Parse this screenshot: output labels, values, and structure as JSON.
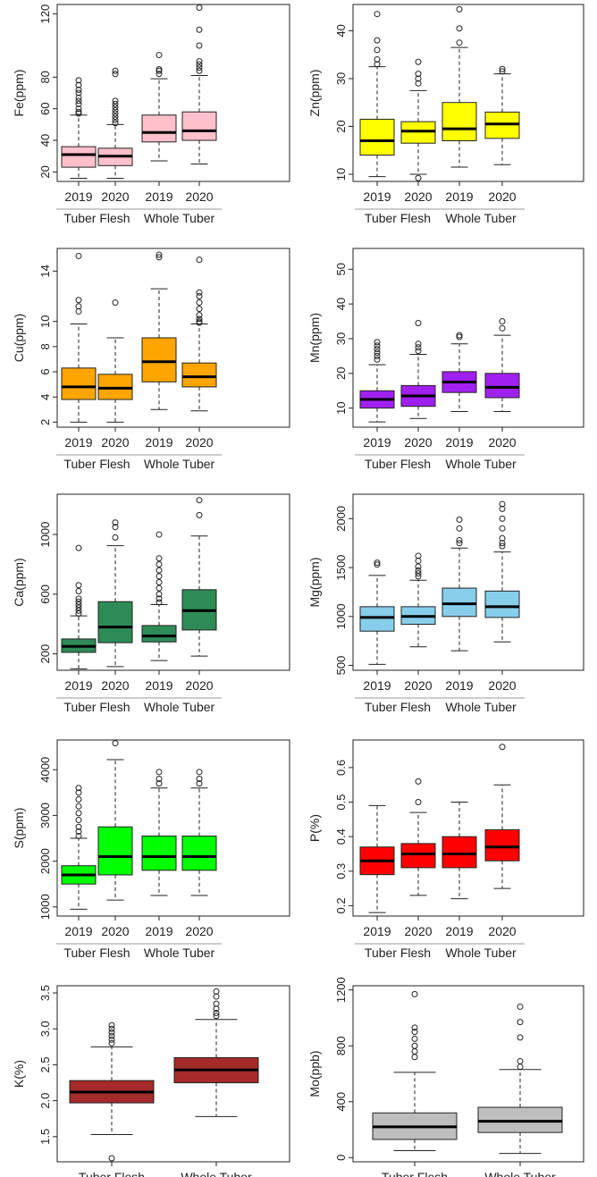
{
  "chart_data": [
    {
      "type": "box",
      "ylabel": "Fe(ppm)",
      "color": "#ffc0cb",
      "ylim": [
        14,
        126
      ],
      "yticks": [
        20,
        40,
        60,
        80,
        120
      ],
      "categories": [
        "2019",
        "2020",
        "2019",
        "2020"
      ],
      "groups": [
        "Tuber Flesh",
        "Whole Tuber"
      ],
      "boxes": [
        {
          "min": 16,
          "q1": 23,
          "median": 31,
          "q3": 36,
          "max": 56,
          "outliers": [
            57,
            58,
            60,
            63,
            65,
            67,
            70,
            72,
            75,
            78
          ]
        },
        {
          "min": 16,
          "q1": 24,
          "median": 30,
          "q3": 35,
          "max": 50,
          "outliers": [
            51,
            53,
            55,
            57,
            59,
            61,
            63,
            65,
            82,
            84
          ]
        },
        {
          "min": 27,
          "q1": 39,
          "median": 45,
          "q3": 56,
          "max": 79,
          "outliers": [
            82,
            84,
            85,
            94
          ]
        },
        {
          "min": 25,
          "q1": 40,
          "median": 46,
          "q3": 58,
          "max": 81,
          "outliers": [
            84,
            86,
            88,
            90,
            100,
            110,
            124
          ]
        }
      ]
    },
    {
      "type": "box",
      "ylabel": "Zn(ppm)",
      "color": "#ffff00",
      "ylim": [
        8.5,
        45.5
      ],
      "yticks": [
        10,
        20,
        30,
        40
      ],
      "categories": [
        "2019",
        "2020",
        "2019",
        "2020"
      ],
      "groups": [
        "Tuber Flesh",
        "Whole Tuber"
      ],
      "boxes": [
        {
          "min": 9.5,
          "q1": 14,
          "median": 17,
          "q3": 21.5,
          "max": 32.5,
          "outliers": [
            33,
            34,
            36,
            38,
            43.5
          ]
        },
        {
          "min": 10,
          "q1": 16.5,
          "median": 19,
          "q3": 21,
          "max": 27.5,
          "outliers": [
            9.2,
            29,
            30,
            31,
            33.5
          ]
        },
        {
          "min": 11.5,
          "q1": 17,
          "median": 19.5,
          "q3": 25,
          "max": 36.5,
          "outliers": [
            37.5,
            40.5,
            44.5
          ]
        },
        {
          "min": 12,
          "q1": 17.5,
          "median": 20.5,
          "q3": 23,
          "max": 31,
          "outliers": [
            31.5,
            32
          ]
        }
      ]
    },
    {
      "type": "box",
      "ylabel": "Cu(ppm)",
      "color": "#ffa500",
      "ylim": [
        1.6,
        15.8
      ],
      "yticks": [
        2,
        4,
        6,
        8,
        10,
        14
      ],
      "categories": [
        "2019",
        "2020",
        "2019",
        "2020"
      ],
      "groups": [
        "Tuber Flesh",
        "Whole Tuber"
      ],
      "boxes": [
        {
          "min": 2,
          "q1": 3.8,
          "median": 4.8,
          "q3": 6.3,
          "max": 9.8,
          "outliers": [
            10.8,
            11.2,
            11.7,
            15.2
          ]
        },
        {
          "min": 2,
          "q1": 3.8,
          "median": 4.7,
          "q3": 5.8,
          "max": 8.7,
          "outliers": [
            11.5
          ]
        },
        {
          "min": 3,
          "q1": 5.2,
          "median": 6.8,
          "q3": 8.7,
          "max": 12.6,
          "outliers": [
            15.1,
            15.3
          ]
        },
        {
          "min": 2.9,
          "q1": 4.8,
          "median": 5.6,
          "q3": 6.7,
          "max": 9.8,
          "outliers": [
            9.9,
            10,
            10.2,
            10.5,
            11,
            11.5,
            12,
            12.3,
            14.9
          ]
        }
      ]
    },
    {
      "type": "box",
      "ylabel": "Mn(ppm)",
      "color": "#a020f0",
      "ylim": [
        4.5,
        56
      ],
      "yticks": [
        10,
        20,
        30,
        40,
        50
      ],
      "categories": [
        "2019",
        "2020",
        "2019",
        "2020"
      ],
      "groups": [
        "Tuber Flesh",
        "Whole Tuber"
      ],
      "boxes": [
        {
          "min": 6,
          "q1": 10,
          "median": 12.5,
          "q3": 15,
          "max": 22.5,
          "outliers": [
            24,
            25,
            26,
            27,
            28,
            29
          ]
        },
        {
          "min": 7,
          "q1": 10.5,
          "median": 13.5,
          "q3": 16.5,
          "max": 25.5,
          "outliers": [
            26.5,
            27.5,
            28.5,
            34.5
          ]
        },
        {
          "min": 9,
          "q1": 14.5,
          "median": 17.5,
          "q3": 20.5,
          "max": 28.5,
          "outliers": [
            30.5,
            31
          ]
        },
        {
          "min": 9,
          "q1": 13,
          "median": 16,
          "q3": 20,
          "max": 31,
          "outliers": [
            33,
            35
          ]
        }
      ]
    },
    {
      "type": "box",
      "ylabel": "Ca(ppm)",
      "color": "#2e8b57",
      "ylim": [
        90,
        1270
      ],
      "yticks": [
        200,
        600,
        1000
      ],
      "categories": [
        "2019",
        "2020",
        "2019",
        "2020"
      ],
      "groups": [
        "Tuber Flesh",
        "Whole Tuber"
      ],
      "boxes": [
        {
          "min": 100,
          "q1": 210,
          "median": 250,
          "q3": 300,
          "max": 455,
          "outliers": [
            470,
            490,
            510,
            530,
            550,
            570,
            620,
            660,
            910
          ]
        },
        {
          "min": 115,
          "q1": 275,
          "median": 380,
          "q3": 550,
          "max": 925,
          "outliers": [
            980,
            1050,
            1080
          ]
        },
        {
          "min": 155,
          "q1": 280,
          "median": 320,
          "q3": 390,
          "max": 530,
          "outliers": [
            545,
            570,
            600,
            640,
            680,
            720,
            760,
            800,
            840,
            1000
          ]
        },
        {
          "min": 185,
          "q1": 360,
          "median": 490,
          "q3": 630,
          "max": 990,
          "outliers": [
            1130,
            1230
          ]
        }
      ]
    },
    {
      "type": "box",
      "ylabel": "Mg(ppm)",
      "color": "#87ceeb",
      "ylim": [
        450,
        2250
      ],
      "yticks": [
        500,
        1000,
        1500,
        2000
      ],
      "categories": [
        "2019",
        "2020",
        "2019",
        "2020"
      ],
      "groups": [
        "Tuber Flesh",
        "Whole Tuber"
      ],
      "boxes": [
        {
          "min": 510,
          "q1": 850,
          "median": 990,
          "q3": 1100,
          "max": 1420,
          "outliers": [
            1530,
            1550
          ]
        },
        {
          "min": 690,
          "q1": 920,
          "median": 1000,
          "q3": 1100,
          "max": 1370,
          "outliers": [
            1410,
            1440,
            1470,
            1510,
            1570,
            1620
          ]
        },
        {
          "min": 650,
          "q1": 1000,
          "median": 1130,
          "q3": 1290,
          "max": 1700,
          "outliers": [
            1750,
            1780,
            1900,
            1990
          ]
        },
        {
          "min": 740,
          "q1": 990,
          "median": 1100,
          "q3": 1260,
          "max": 1660,
          "outliers": [
            1720,
            1750,
            1800,
            1900,
            2000,
            2100,
            2150
          ]
        }
      ]
    },
    {
      "type": "box",
      "ylabel": "S(ppm)",
      "color": "#00ff00",
      "ylim": [
        800,
        4650
      ],
      "yticks": [
        1000,
        2000,
        3000,
        4000
      ],
      "categories": [
        "2019",
        "2020",
        "2019",
        "2020"
      ],
      "groups": [
        "Tuber Flesh",
        "Whole Tuber"
      ],
      "boxes": [
        {
          "min": 950,
          "q1": 1500,
          "median": 1700,
          "q3": 1900,
          "max": 2500,
          "outliers": [
            2550,
            2650,
            2750,
            2900,
            3050,
            3200,
            3350,
            3500,
            3600
          ]
        },
        {
          "min": 1150,
          "q1": 1700,
          "median": 2100,
          "q3": 2750,
          "max": 4220,
          "outliers": [
            4580
          ]
        },
        {
          "min": 1250,
          "q1": 1800,
          "median": 2100,
          "q3": 2550,
          "max": 3600,
          "outliers": [
            3700,
            3800,
            3950
          ]
        },
        {
          "min": 1250,
          "q1": 1800,
          "median": 2100,
          "q3": 2550,
          "max": 3600,
          "outliers": [
            3700,
            3800,
            3950
          ]
        }
      ]
    },
    {
      "type": "box",
      "ylabel": "P(%)",
      "color": "#ff0000",
      "ylim": [
        0.17,
        0.68
      ],
      "yticks": [
        0.2,
        0.3,
        0.4,
        0.5,
        0.6
      ],
      "categories": [
        "2019",
        "2020",
        "2019",
        "2020"
      ],
      "groups": [
        "Tuber Flesh",
        "Whole Tuber"
      ],
      "boxes": [
        {
          "min": 0.18,
          "q1": 0.29,
          "median": 0.33,
          "q3": 0.37,
          "max": 0.49,
          "outliers": []
        },
        {
          "min": 0.23,
          "q1": 0.31,
          "median": 0.35,
          "q3": 0.38,
          "max": 0.47,
          "outliers": [
            0.5,
            0.56
          ]
        },
        {
          "min": 0.22,
          "q1": 0.31,
          "median": 0.35,
          "q3": 0.4,
          "max": 0.5,
          "outliers": []
        },
        {
          "min": 0.25,
          "q1": 0.33,
          "median": 0.37,
          "q3": 0.42,
          "max": 0.55,
          "outliers": [
            0.66
          ]
        }
      ]
    },
    {
      "type": "box",
      "ylabel": "K(%)",
      "color": "#a52a2a",
      "ylim": [
        1.15,
        3.6
      ],
      "yticks": [
        1.5,
        2.0,
        2.5,
        3.0,
        3.5
      ],
      "ytick_labels": [
        "1.5",
        "2.0",
        "2.5",
        "3.0",
        "3.5"
      ],
      "categories": [
        "Tuber Flesh",
        "Whole Tuber"
      ],
      "groups": [],
      "boxes": [
        {
          "min": 1.53,
          "q1": 1.97,
          "median": 2.12,
          "q3": 2.28,
          "max": 2.75,
          "outliers": [
            1.2,
            2.8,
            2.85,
            2.9,
            2.95,
            3.0,
            3.05
          ]
        },
        {
          "min": 1.78,
          "q1": 2.25,
          "median": 2.43,
          "q3": 2.6,
          "max": 3.13,
          "outliers": [
            3.18,
            3.22,
            3.28,
            3.35,
            3.45,
            3.52
          ]
        }
      ]
    },
    {
      "type": "box",
      "ylabel": "Mo(ppb)",
      "color": "#bebebe",
      "ylim": [
        -30,
        1230
      ],
      "yticks": [
        0,
        400,
        800,
        1200
      ],
      "categories": [
        "Tuber Flesh",
        "Whole Tuber"
      ],
      "groups": [],
      "boxes": [
        {
          "min": 50,
          "q1": 130,
          "median": 220,
          "q3": 320,
          "max": 610,
          "outliers": [
            720,
            760,
            800,
            850,
            900,
            930,
            1170
          ]
        },
        {
          "min": 30,
          "q1": 180,
          "median": 260,
          "q3": 360,
          "max": 630,
          "outliers": [
            650,
            690,
            860,
            970,
            1080
          ]
        }
      ]
    }
  ]
}
